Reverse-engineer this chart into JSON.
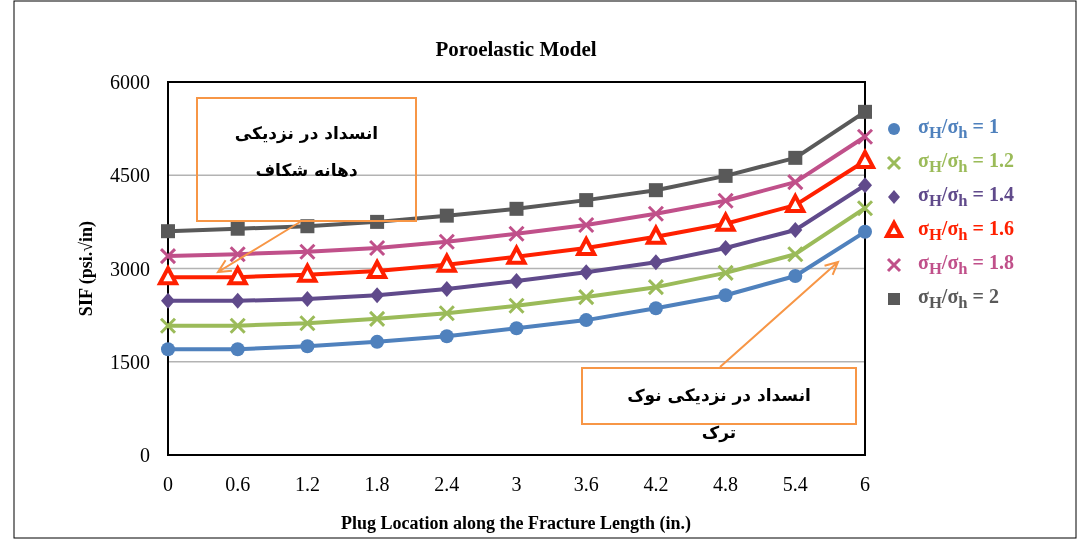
{
  "chart_data": {
    "type": "line",
    "title": "Poroelastic Model",
    "xlabel": "Plug Location along the Fracture Length (in.)",
    "ylabel": "SIF (psi.√in)",
    "x": [
      0,
      0.6,
      1.2,
      1.8,
      2.4,
      3,
      3.6,
      4.2,
      4.8,
      5.4,
      6
    ],
    "xlim": [
      0,
      6
    ],
    "xticks": [
      0,
      0.6,
      1.2,
      1.8,
      2.4,
      3,
      3.6,
      4.2,
      4.8,
      5.4,
      6
    ],
    "ylim": [
      0,
      6000
    ],
    "yticks": [
      0,
      1500,
      3000,
      4500,
      6000
    ],
    "grid": "y",
    "legend": "right",
    "line_style": "solid",
    "series": [
      {
        "name": "σ$_{H}$/σ$_{h}$ = 1",
        "color": "#4f81bd",
        "marker": "circle",
        "values": [
          1700,
          1700,
          1750,
          1820,
          1910,
          2040,
          2170,
          2360,
          2570,
          2880,
          3590
        ]
      },
      {
        "name": "σ$_{H}$/σ$_{h}$ = 1.2",
        "color": "#9bbb59",
        "marker": "cross",
        "values": [
          2080,
          2080,
          2120,
          2190,
          2280,
          2400,
          2540,
          2700,
          2930,
          3230,
          3970
        ]
      },
      {
        "name": "σ$_{H}$/σ$_{h}$ = 1.4",
        "color": "#604a8b",
        "marker": "diamond",
        "values": [
          2480,
          2480,
          2510,
          2570,
          2670,
          2800,
          2940,
          3100,
          3330,
          3620,
          4340
        ]
      },
      {
        "name": "σ$_{H}$/σ$_{h}$ = 1.6",
        "color": "#ff2000",
        "marker": "triangle",
        "values": [
          2860,
          2860,
          2900,
          2960,
          3060,
          3190,
          3330,
          3510,
          3720,
          4020,
          4730
        ]
      },
      {
        "name": "σ$_{H}$/σ$_{h}$ = 1.8",
        "color": "#c0508a",
        "marker": "cross",
        "values": [
          3200,
          3230,
          3270,
          3330,
          3430,
          3560,
          3700,
          3880,
          4090,
          4390,
          5120
        ]
      },
      {
        "name": "σ$_{H}$/σ$_{h}$ = 2",
        "color": "#595959",
        "marker": "square",
        "values": [
          3600,
          3640,
          3680,
          3750,
          3850,
          3960,
          4100,
          4260,
          4490,
          4780,
          5520
        ]
      }
    ],
    "annotations": [
      "انسداد در نزدیکی دهانه شکاف",
      "انسداد در نزدیکی نوک ترک"
    ]
  }
}
